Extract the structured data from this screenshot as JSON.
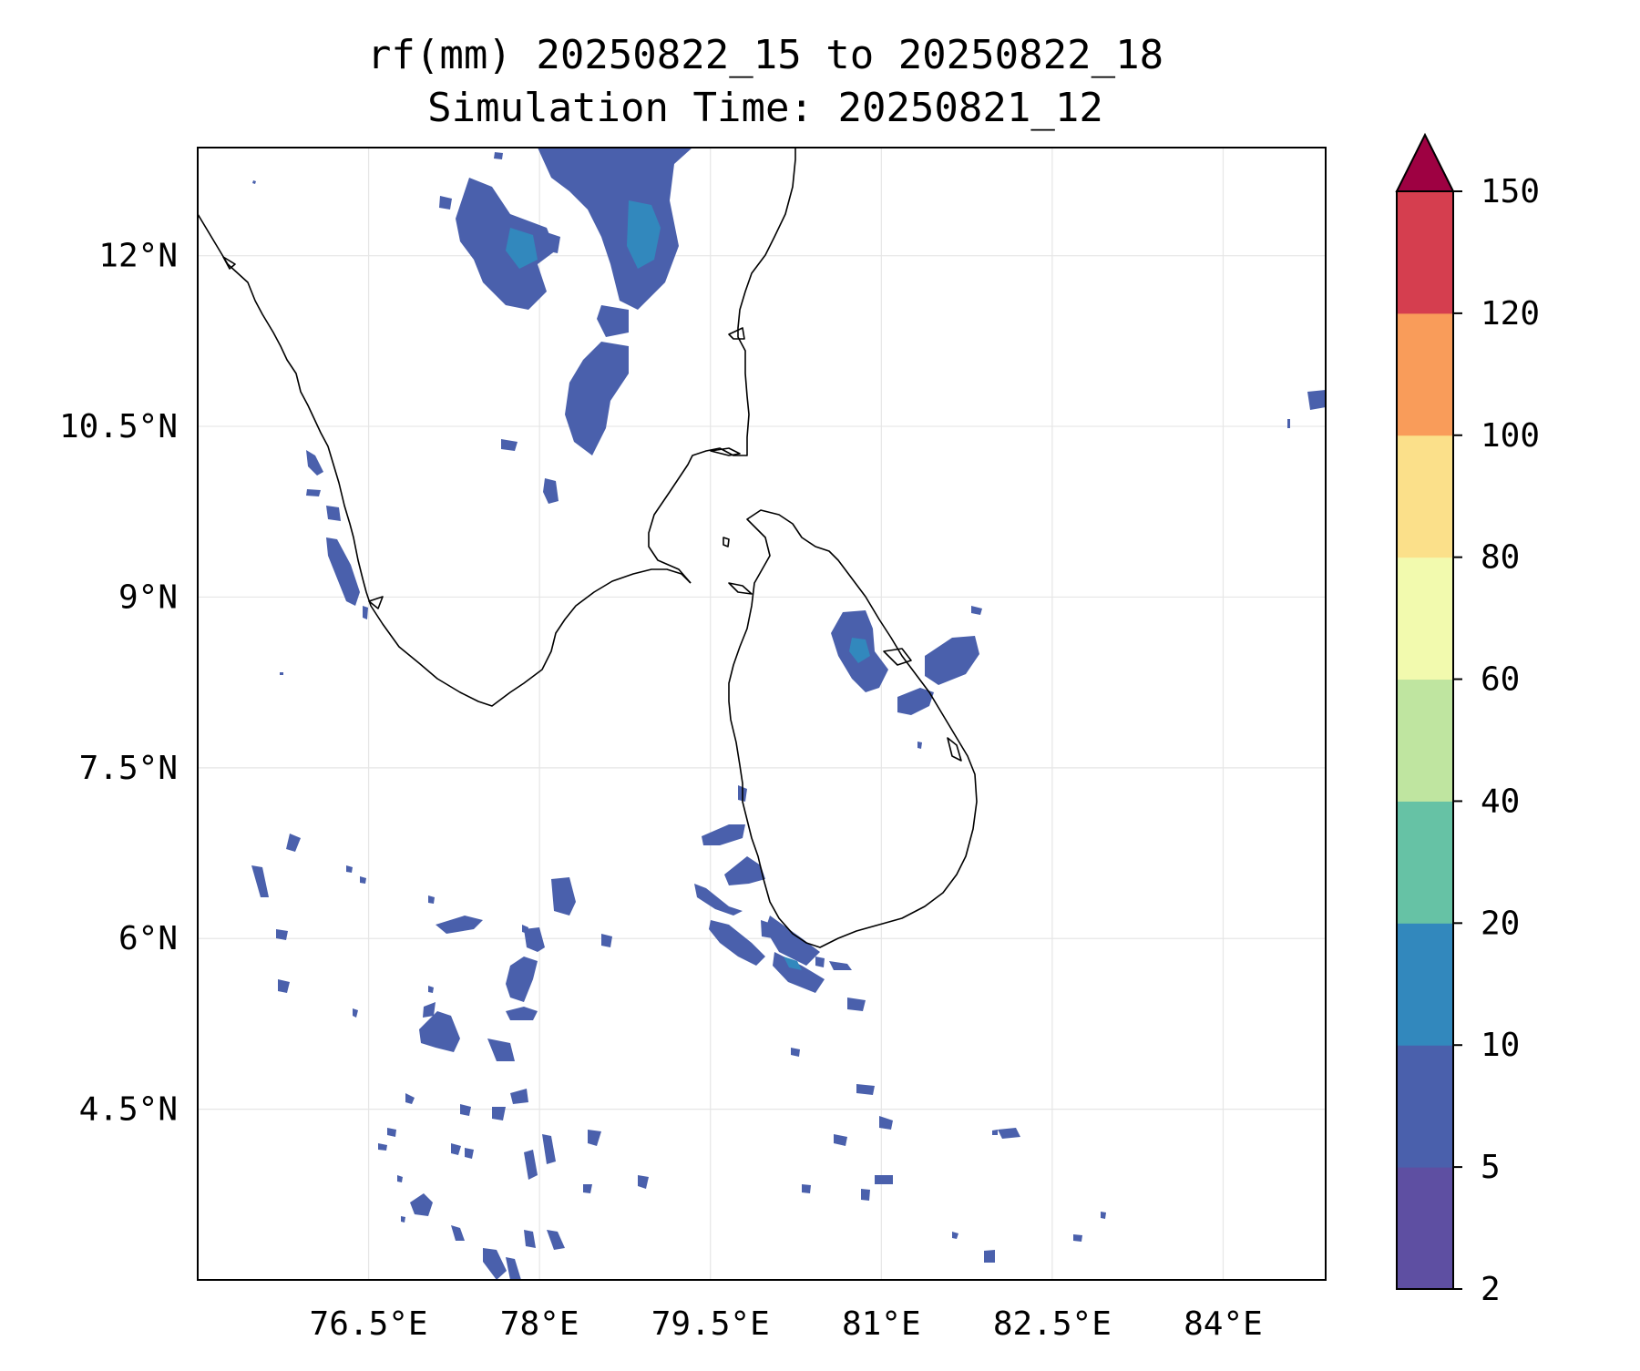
{
  "map": {
    "title_line1": "rf(mm) 20250822_15 to 20250822_18",
    "title_line2": "Simulation Time: 20250821_12",
    "lon_range": [
      75.0,
      84.9
    ],
    "lat_range": [
      3.0,
      12.95
    ],
    "lon_ticks": [
      76.5,
      78.0,
      79.5,
      81.0,
      82.5,
      84.0
    ],
    "lon_tick_labels": [
      "76.5°E",
      "78°E",
      "79.5°E",
      "81°E",
      "82.5°E",
      "84°E"
    ],
    "lat_ticks": [
      12.0,
      10.5,
      9.0,
      7.5,
      6.0,
      4.5
    ],
    "lat_tick_labels": [
      "12°N",
      "10.5°N",
      "9°N",
      "7.5°N",
      "6°N",
      "4.5°N"
    ],
    "gridlines": true,
    "coastline_color": "#000000",
    "gridline_color": "#e6e6e6",
    "rain_color_2_5": "#5e4fa2",
    "rain_color_5_10": "#4a60ac",
    "rain_color_10_20": "#3288bd"
  },
  "colorbar": {
    "levels": [
      2,
      5,
      10,
      20,
      40,
      60,
      80,
      100,
      120,
      150
    ],
    "labels": [
      "2",
      "5",
      "10",
      "20",
      "40",
      "60",
      "80",
      "100",
      "120",
      "150"
    ],
    "colors": [
      "#5e4fa2",
      "#4a60ac",
      "#3288bd",
      "#66c2a5",
      "#bfe5a0",
      "#f2faae",
      "#fbe08a",
      "#f99c5a",
      "#d53e4f"
    ],
    "extend_color": "#9e0142",
    "extend": "max"
  }
}
